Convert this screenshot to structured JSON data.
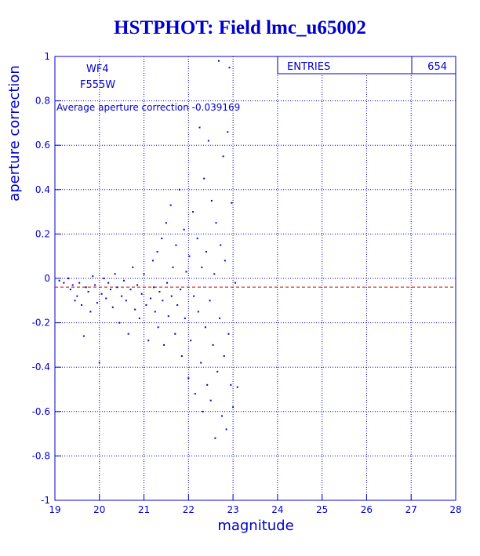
{
  "title": "HSTPHOT: Field lmc_u65002",
  "colors": {
    "axis": "#0000cc",
    "grid": "#0000cc",
    "points": "#0000cc",
    "average_line": "#cc0000",
    "background": "#ffffff"
  },
  "labels": {
    "detector": "WF4",
    "filter": "F555W",
    "average": "Average aperture correction -0.039169"
  },
  "stats": {
    "entries_label": "ENTRIES",
    "entries_value": "654"
  },
  "chart_data": {
    "type": "scatter",
    "title": "HSTPHOT: Field lmc_u65002",
    "xlabel": "magnitude",
    "ylabel": "aperture correction",
    "xlim": [
      19,
      28
    ],
    "ylim": [
      -1,
      1
    ],
    "x_ticks": [
      "19",
      "20",
      "21",
      "22",
      "23",
      "24",
      "25",
      "26",
      "27",
      "28"
    ],
    "y_ticks": [
      "1",
      "0.8",
      "0.6",
      "0.4",
      "0.2",
      "0",
      "-0.2",
      "-0.4",
      "-0.6",
      "-0.8",
      "-1"
    ],
    "grid": true,
    "average_line_y": -0.039169,
    "series": [
      {
        "points": [
          [
            19.1,
            -0.01
          ],
          [
            19.2,
            -0.02
          ],
          [
            19.3,
            0.0
          ],
          [
            19.35,
            -0.05
          ],
          [
            19.4,
            -0.03
          ],
          [
            19.45,
            -0.1
          ],
          [
            19.5,
            -0.08
          ],
          [
            19.55,
            -0.02
          ],
          [
            19.6,
            -0.12
          ],
          [
            19.65,
            -0.26
          ],
          [
            19.7,
            -0.04
          ],
          [
            19.75,
            -0.06
          ],
          [
            19.8,
            -0.15
          ],
          [
            19.85,
            0.01
          ],
          [
            19.9,
            -0.03
          ],
          [
            19.95,
            -0.11
          ],
          [
            20.0,
            -0.38
          ],
          [
            20.05,
            -0.07
          ],
          [
            20.1,
            0.0
          ],
          [
            20.15,
            -0.09
          ],
          [
            20.2,
            -0.02
          ],
          [
            20.25,
            -0.05
          ],
          [
            20.3,
            -0.13
          ],
          [
            20.35,
            0.02
          ],
          [
            20.4,
            -0.04
          ],
          [
            20.45,
            -0.2
          ],
          [
            20.5,
            -0.08
          ],
          [
            20.55,
            -0.01
          ],
          [
            20.6,
            -0.1
          ],
          [
            20.65,
            -0.25
          ],
          [
            20.7,
            -0.05
          ],
          [
            20.75,
            0.05
          ],
          [
            20.8,
            -0.14
          ],
          [
            20.85,
            -0.03
          ],
          [
            20.9,
            -0.18
          ],
          [
            20.95,
            -0.07
          ],
          [
            21.0,
            0.02
          ],
          [
            21.05,
            -0.12
          ],
          [
            21.1,
            -0.28
          ],
          [
            21.15,
            -0.09
          ],
          [
            21.2,
            0.08
          ],
          [
            21.22,
            -0.04
          ],
          [
            21.25,
            -0.15
          ],
          [
            21.3,
            0.12
          ],
          [
            21.32,
            -0.22
          ],
          [
            21.35,
            -0.06
          ],
          [
            21.4,
            0.18
          ],
          [
            21.42,
            -0.1
          ],
          [
            21.45,
            -0.3
          ],
          [
            21.5,
            0.25
          ],
          [
            21.52,
            -0.02
          ],
          [
            21.55,
            -0.17
          ],
          [
            21.6,
            0.33
          ],
          [
            21.62,
            -0.08
          ],
          [
            21.65,
            0.05
          ],
          [
            21.7,
            -0.25
          ],
          [
            21.72,
            0.15
          ],
          [
            21.75,
            -0.12
          ],
          [
            21.8,
            0.4
          ],
          [
            21.82,
            -0.05
          ],
          [
            21.85,
            -0.35
          ],
          [
            21.9,
            0.22
          ],
          [
            21.92,
            -0.18
          ],
          [
            21.95,
            0.03
          ],
          [
            22.0,
            -0.45
          ],
          [
            22.02,
            0.1
          ],
          [
            22.05,
            -0.28
          ],
          [
            22.1,
            0.3
          ],
          [
            22.12,
            -0.08
          ],
          [
            22.15,
            -0.52
          ],
          [
            22.2,
            0.18
          ],
          [
            22.22,
            -0.15
          ],
          [
            22.25,
            0.68
          ],
          [
            22.28,
            -0.38
          ],
          [
            22.3,
            0.05
          ],
          [
            22.32,
            -0.6
          ],
          [
            22.35,
            0.45
          ],
          [
            22.38,
            -0.22
          ],
          [
            22.4,
            0.12
          ],
          [
            22.42,
            -0.48
          ],
          [
            22.45,
            0.62
          ],
          [
            22.48,
            -0.1
          ],
          [
            22.5,
            -0.55
          ],
          [
            22.52,
            0.35
          ],
          [
            22.55,
            -0.3
          ],
          [
            22.58,
            0.02
          ],
          [
            22.6,
            -0.72
          ],
          [
            22.62,
            0.25
          ],
          [
            22.65,
            -0.42
          ],
          [
            22.68,
            0.98
          ],
          [
            22.7,
            -0.18
          ],
          [
            22.72,
            0.15
          ],
          [
            22.75,
            -0.62
          ],
          [
            22.78,
            0.55
          ],
          [
            22.8,
            -0.35
          ],
          [
            22.82,
            0.08
          ],
          [
            22.85,
            -0.68
          ],
          [
            22.88,
            0.66
          ],
          [
            22.9,
            -0.25
          ],
          [
            22.92,
            0.95
          ],
          [
            22.95,
            -0.48
          ],
          [
            22.97,
            0.34
          ],
          [
            23.0,
            -0.58
          ],
          [
            23.05,
            -0.02
          ],
          [
            23.1,
            -0.49
          ]
        ]
      }
    ]
  }
}
